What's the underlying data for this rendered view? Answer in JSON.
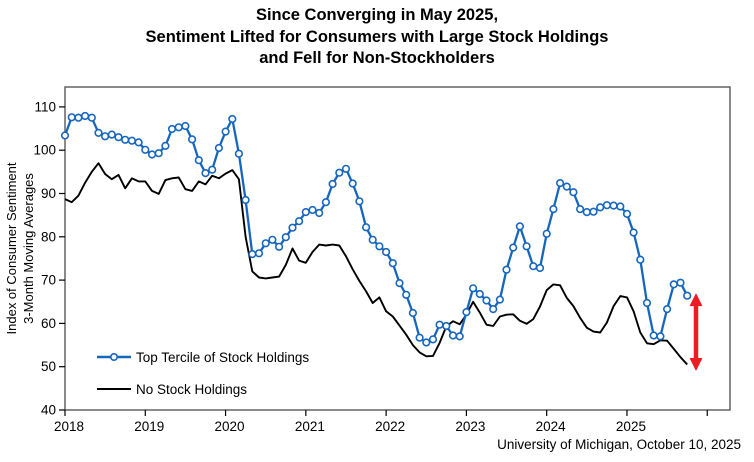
{
  "title": {
    "lines": [
      "Since Converging in May 2025,",
      "Sentiment Lifted for Consumers with Large Stock Holdings",
      "and Fell for Non-Stockholders"
    ]
  },
  "source": "University of Michigan, October 10, 2025",
  "chart_data": {
    "type": "line",
    "title": "Since Converging in May 2025, Sentiment Lifted for Consumers with Large Stock Holdings and Fell for Non-Stockholders",
    "ylabel_line1": "Index of Consumer Sentiment",
    "ylabel_line2": "3-Month Moving Averages",
    "ylim": [
      40,
      110
    ],
    "ytick_step": 10,
    "x_year_ticks": [
      2018,
      2019,
      2020,
      2021,
      2022,
      2023,
      2024,
      2025
    ],
    "x_start_month": "2018-01",
    "x_frequency": "monthly",
    "grid": false,
    "legend_position": "lower-left-inside",
    "series": [
      {
        "name": "No Stock Holdings",
        "color": "#000000",
        "marker": "none",
        "values": [
          88.7,
          88.0,
          89.5,
          92.5,
          95.0,
          97.0,
          94.5,
          93.3,
          94.3,
          91.2,
          93.5,
          92.8,
          92.8,
          90.6,
          89.9,
          93.1,
          93.5,
          93.7,
          91.0,
          90.6,
          92.8,
          92.1,
          94.1,
          93.5,
          94.6,
          95.4,
          93.3,
          80.0,
          72.0,
          70.6,
          70.4,
          70.6,
          70.8,
          73.5,
          77.3,
          74.5,
          74.0,
          76.5,
          78.2,
          78.0,
          78.2,
          78.0,
          75.5,
          72.5,
          69.8,
          67.4,
          64.7,
          66.0,
          62.8,
          61.6,
          59.5,
          57.4,
          55.0,
          53.3,
          52.4,
          52.5,
          55.5,
          59.3,
          60.5,
          59.8,
          62.0,
          65.0,
          62.5,
          59.7,
          59.4,
          61.6,
          62.0,
          62.1,
          60.6,
          59.9,
          61.0,
          63.9,
          67.7,
          69.0,
          68.8,
          65.9,
          64.0,
          61.3,
          59.0,
          58.1,
          57.9,
          60.2,
          64.0,
          66.3,
          66.0,
          62.8,
          57.9,
          55.4,
          55.2,
          56.1,
          56.0,
          54.1,
          52.2,
          50.5
        ]
      },
      {
        "name": "Top Tercile of Stock Holdings",
        "color": "#1766be",
        "marker": "circle",
        "values": [
          103.4,
          107.6,
          107.5,
          107.9,
          107.5,
          104.0,
          103.2,
          103.6,
          103.0,
          102.4,
          102.2,
          101.8,
          100.1,
          99.0,
          99.3,
          101.0,
          104.9,
          105.3,
          105.6,
          102.5,
          97.7,
          94.7,
          95.5,
          100.5,
          104.3,
          107.2,
          99.2,
          88.5,
          76.0,
          76.2,
          78.5,
          79.3,
          77.7,
          79.9,
          82.1,
          83.6,
          85.7,
          86.2,
          85.5,
          88.0,
          92.2,
          94.8,
          95.7,
          92.3,
          88.2,
          82.2,
          79.3,
          77.8,
          76.5,
          73.9,
          69.3,
          66.6,
          62.4,
          56.7,
          55.6,
          56.3,
          59.7,
          59.4,
          57.2,
          57.0,
          62.6,
          68.1,
          66.8,
          65.3,
          63.3,
          65.5,
          72.4,
          77.5,
          82.4,
          77.8,
          73.2,
          72.8,
          80.7,
          86.4,
          92.4,
          91.6,
          90.3,
          86.4,
          85.7,
          85.8,
          86.8,
          87.3,
          87.2,
          87.0,
          85.3,
          81.0,
          74.7,
          64.7,
          57.2,
          57.0,
          63.3,
          69.0,
          69.4,
          66.4
        ]
      }
    ],
    "annotation_arrow": {
      "type": "vertical-double-arrow",
      "color": "#ec1c24",
      "from_value": 67.0,
      "to_value": 49.0,
      "position": "right-of-last-data-point"
    }
  }
}
